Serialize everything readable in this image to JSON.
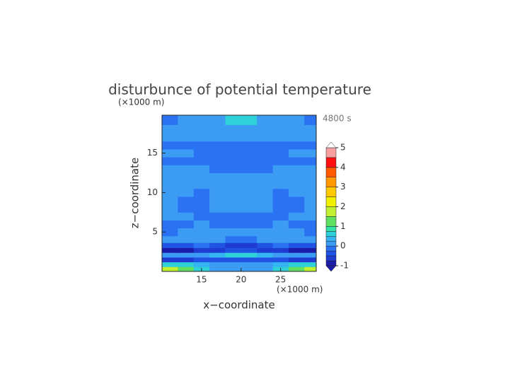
{
  "chart_data": {
    "type": "contour",
    "title": "disturbunce of potential temperature",
    "time_label": "4800 s",
    "x_label": "x−coordinate",
    "z_label": "z−coordinate",
    "x_unit": "(×1000 m)",
    "z_unit": "(×1000 m)",
    "xlim": [
      10,
      29.5
    ],
    "ylim": [
      0,
      19.8
    ],
    "xticks": [
      15,
      20,
      25
    ],
    "yticks": [
      5,
      10,
      15
    ],
    "x": [
      11,
      13,
      15,
      17,
      19,
      21,
      23,
      25,
      27,
      29
    ],
    "z": [
      0.3,
      0.9,
      1.5,
      2.1,
      2.7,
      3.3,
      4,
      5,
      6,
      7,
      8,
      9,
      10,
      11,
      12,
      13,
      14,
      15,
      16,
      17,
      18,
      19.2
    ],
    "values": [
      [
        1.6,
        1.2,
        0.6,
        0.2,
        0.1,
        0.1,
        0.2,
        0.6,
        1.2,
        1.6
      ],
      [
        0.6,
        0.5,
        0.3,
        0.1,
        0.0,
        0.0,
        0.1,
        0.3,
        0.5,
        0.6
      ],
      [
        -0.6,
        -0.6,
        -0.5,
        -0.4,
        -0.4,
        -0.4,
        -0.4,
        -0.5,
        -0.6,
        -0.6
      ],
      [
        0.1,
        0.1,
        0.2,
        0.4,
        0.6,
        0.6,
        0.4,
        0.2,
        0.1,
        0.1
      ],
      [
        -0.8,
        -0.8,
        -0.7,
        -0.6,
        -0.5,
        -0.5,
        -0.6,
        -0.7,
        -0.8,
        -0.8
      ],
      [
        -0.3,
        -0.3,
        -0.2,
        -0.3,
        -0.6,
        -0.6,
        -0.3,
        -0.2,
        -0.3,
        -0.3
      ],
      [
        0.1,
        0.1,
        0.2,
        0.1,
        -0.1,
        -0.1,
        0.1,
        0.2,
        0.1,
        0.1
      ],
      [
        -0.1,
        0.0,
        0.1,
        0.1,
        0.1,
        0.1,
        0.1,
        0.1,
        0.0,
        -0.1
      ],
      [
        -0.2,
        -0.1,
        0.1,
        -0.1,
        -0.2,
        -0.2,
        -0.1,
        0.1,
        -0.1,
        -0.2
      ],
      [
        0.1,
        0.1,
        -0.1,
        -0.2,
        -0.1,
        -0.1,
        -0.2,
        -0.1,
        0.1,
        0.1
      ],
      [
        0.1,
        -0.1,
        -0.1,
        0.1,
        0.1,
        0.1,
        0.1,
        -0.1,
        -0.1,
        0.1
      ],
      [
        0.1,
        -0.1,
        -0.1,
        0.1,
        0.2,
        0.2,
        0.1,
        -0.1,
        -0.1,
        0.1
      ],
      [
        0.1,
        0.1,
        -0.1,
        0.1,
        0.2,
        0.2,
        0.1,
        -0.1,
        0.1,
        0.1
      ],
      [
        0.1,
        0.1,
        0.1,
        0.1,
        0.1,
        0.1,
        0.1,
        0.1,
        0.1,
        0.1
      ],
      [
        0.1,
        0.1,
        0.1,
        0.1,
        0.1,
        0.1,
        0.1,
        0.1,
        0.1,
        0.1
      ],
      [
        0.1,
        0.1,
        0.1,
        -0.1,
        -0.1,
        -0.1,
        -0.1,
        0.1,
        0.1,
        0.1
      ],
      [
        -0.1,
        -0.1,
        -0.1,
        -0.2,
        -0.2,
        -0.2,
        -0.2,
        -0.1,
        -0.1,
        -0.1
      ],
      [
        0.1,
        0.1,
        -0.1,
        -0.1,
        -0.1,
        -0.1,
        -0.1,
        -0.1,
        0.1,
        0.1
      ],
      [
        -0.1,
        -0.1,
        -0.1,
        -0.1,
        -0.1,
        -0.1,
        -0.1,
        -0.1,
        -0.1,
        -0.1
      ],
      [
        0.1,
        0.1,
        0.1,
        0.1,
        0.1,
        0.1,
        0.1,
        0.1,
        0.1,
        0.1
      ],
      [
        0.1,
        0.1,
        0.1,
        0.1,
        0.2,
        0.2,
        0.1,
        0.1,
        0.1,
        0.1
      ],
      [
        -0.1,
        0.1,
        0.1,
        0.2,
        0.7,
        0.7,
        0.2,
        0.1,
        0.1,
        -0.1
      ]
    ],
    "levels": [
      -1,
      -0.75,
      -0.5,
      -0.25,
      0,
      0.25,
      0.5,
      0.75,
      1,
      1.5,
      2,
      2.5,
      3,
      3.5,
      4,
      4.5,
      5
    ],
    "colors": [
      "#1c1ca8",
      "#1e3cd2",
      "#2052e4",
      "#2a72f2",
      "#3c9cf4",
      "#34b4f0",
      "#30d0d8",
      "#30e4a8",
      "#60e060",
      "#c0f030",
      "#f0f000",
      "#ffc800",
      "#ff9900",
      "#ff5a00",
      "#ff1010",
      "#f8a0a0"
    ],
    "colorbar_ticks": [
      -1,
      0,
      1,
      2,
      3,
      4,
      5
    ],
    "extend_low_color": "#1c1ca8",
    "extend_high_color": "#ffffff"
  }
}
